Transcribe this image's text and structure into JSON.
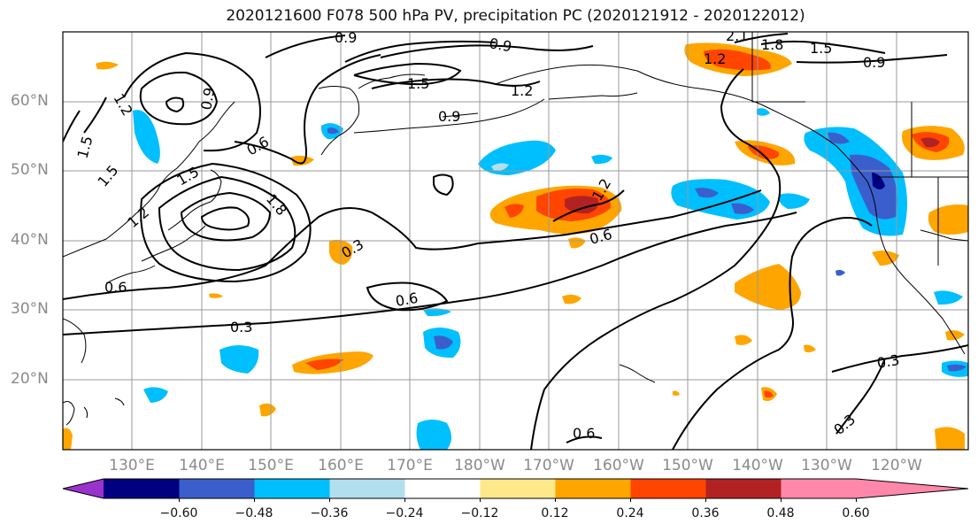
{
  "title": "2020121600 F078 500 hPa PV, precipitation PC (2020121912 - 2020122012)",
  "map": {
    "lat_labels": [
      "60°N",
      "50°N",
      "40°N",
      "30°N",
      "20°N"
    ],
    "lon_labels": [
      "130°E",
      "140°E",
      "150°E",
      "160°E",
      "170°E",
      "180°W",
      "170°W",
      "160°W",
      "150°W",
      "140°W",
      "130°W",
      "120°W"
    ],
    "contour_labels": [
      "0.9",
      "0.9",
      "2.1",
      "1.8",
      "1.5",
      "1.2",
      "0.9",
      "1.5",
      "1.2",
      "0.9",
      "1.2",
      "0.9",
      "0.6",
      "1.5",
      "1.5",
      "1.8",
      "1.5",
      "1.2",
      "0.6",
      "0.3",
      "0.6",
      "0.3",
      "0.6",
      "1.2",
      "0.3",
      "0.3",
      "0.6"
    ]
  },
  "colorbar": {
    "colors": [
      "#9933cc",
      "#000080",
      "#3a5fcd",
      "#00bfff",
      "#b2dfee",
      "#ffffff",
      "#ffe88a",
      "#ffa500",
      "#ff4500",
      "#b22222",
      "#ff88aa"
    ],
    "tick_labels": [
      "−0.60",
      "−0.48",
      "−0.36",
      "−0.24",
      "−0.12",
      "0.12",
      "0.24",
      "0.36",
      "0.48",
      "0.60"
    ]
  }
}
